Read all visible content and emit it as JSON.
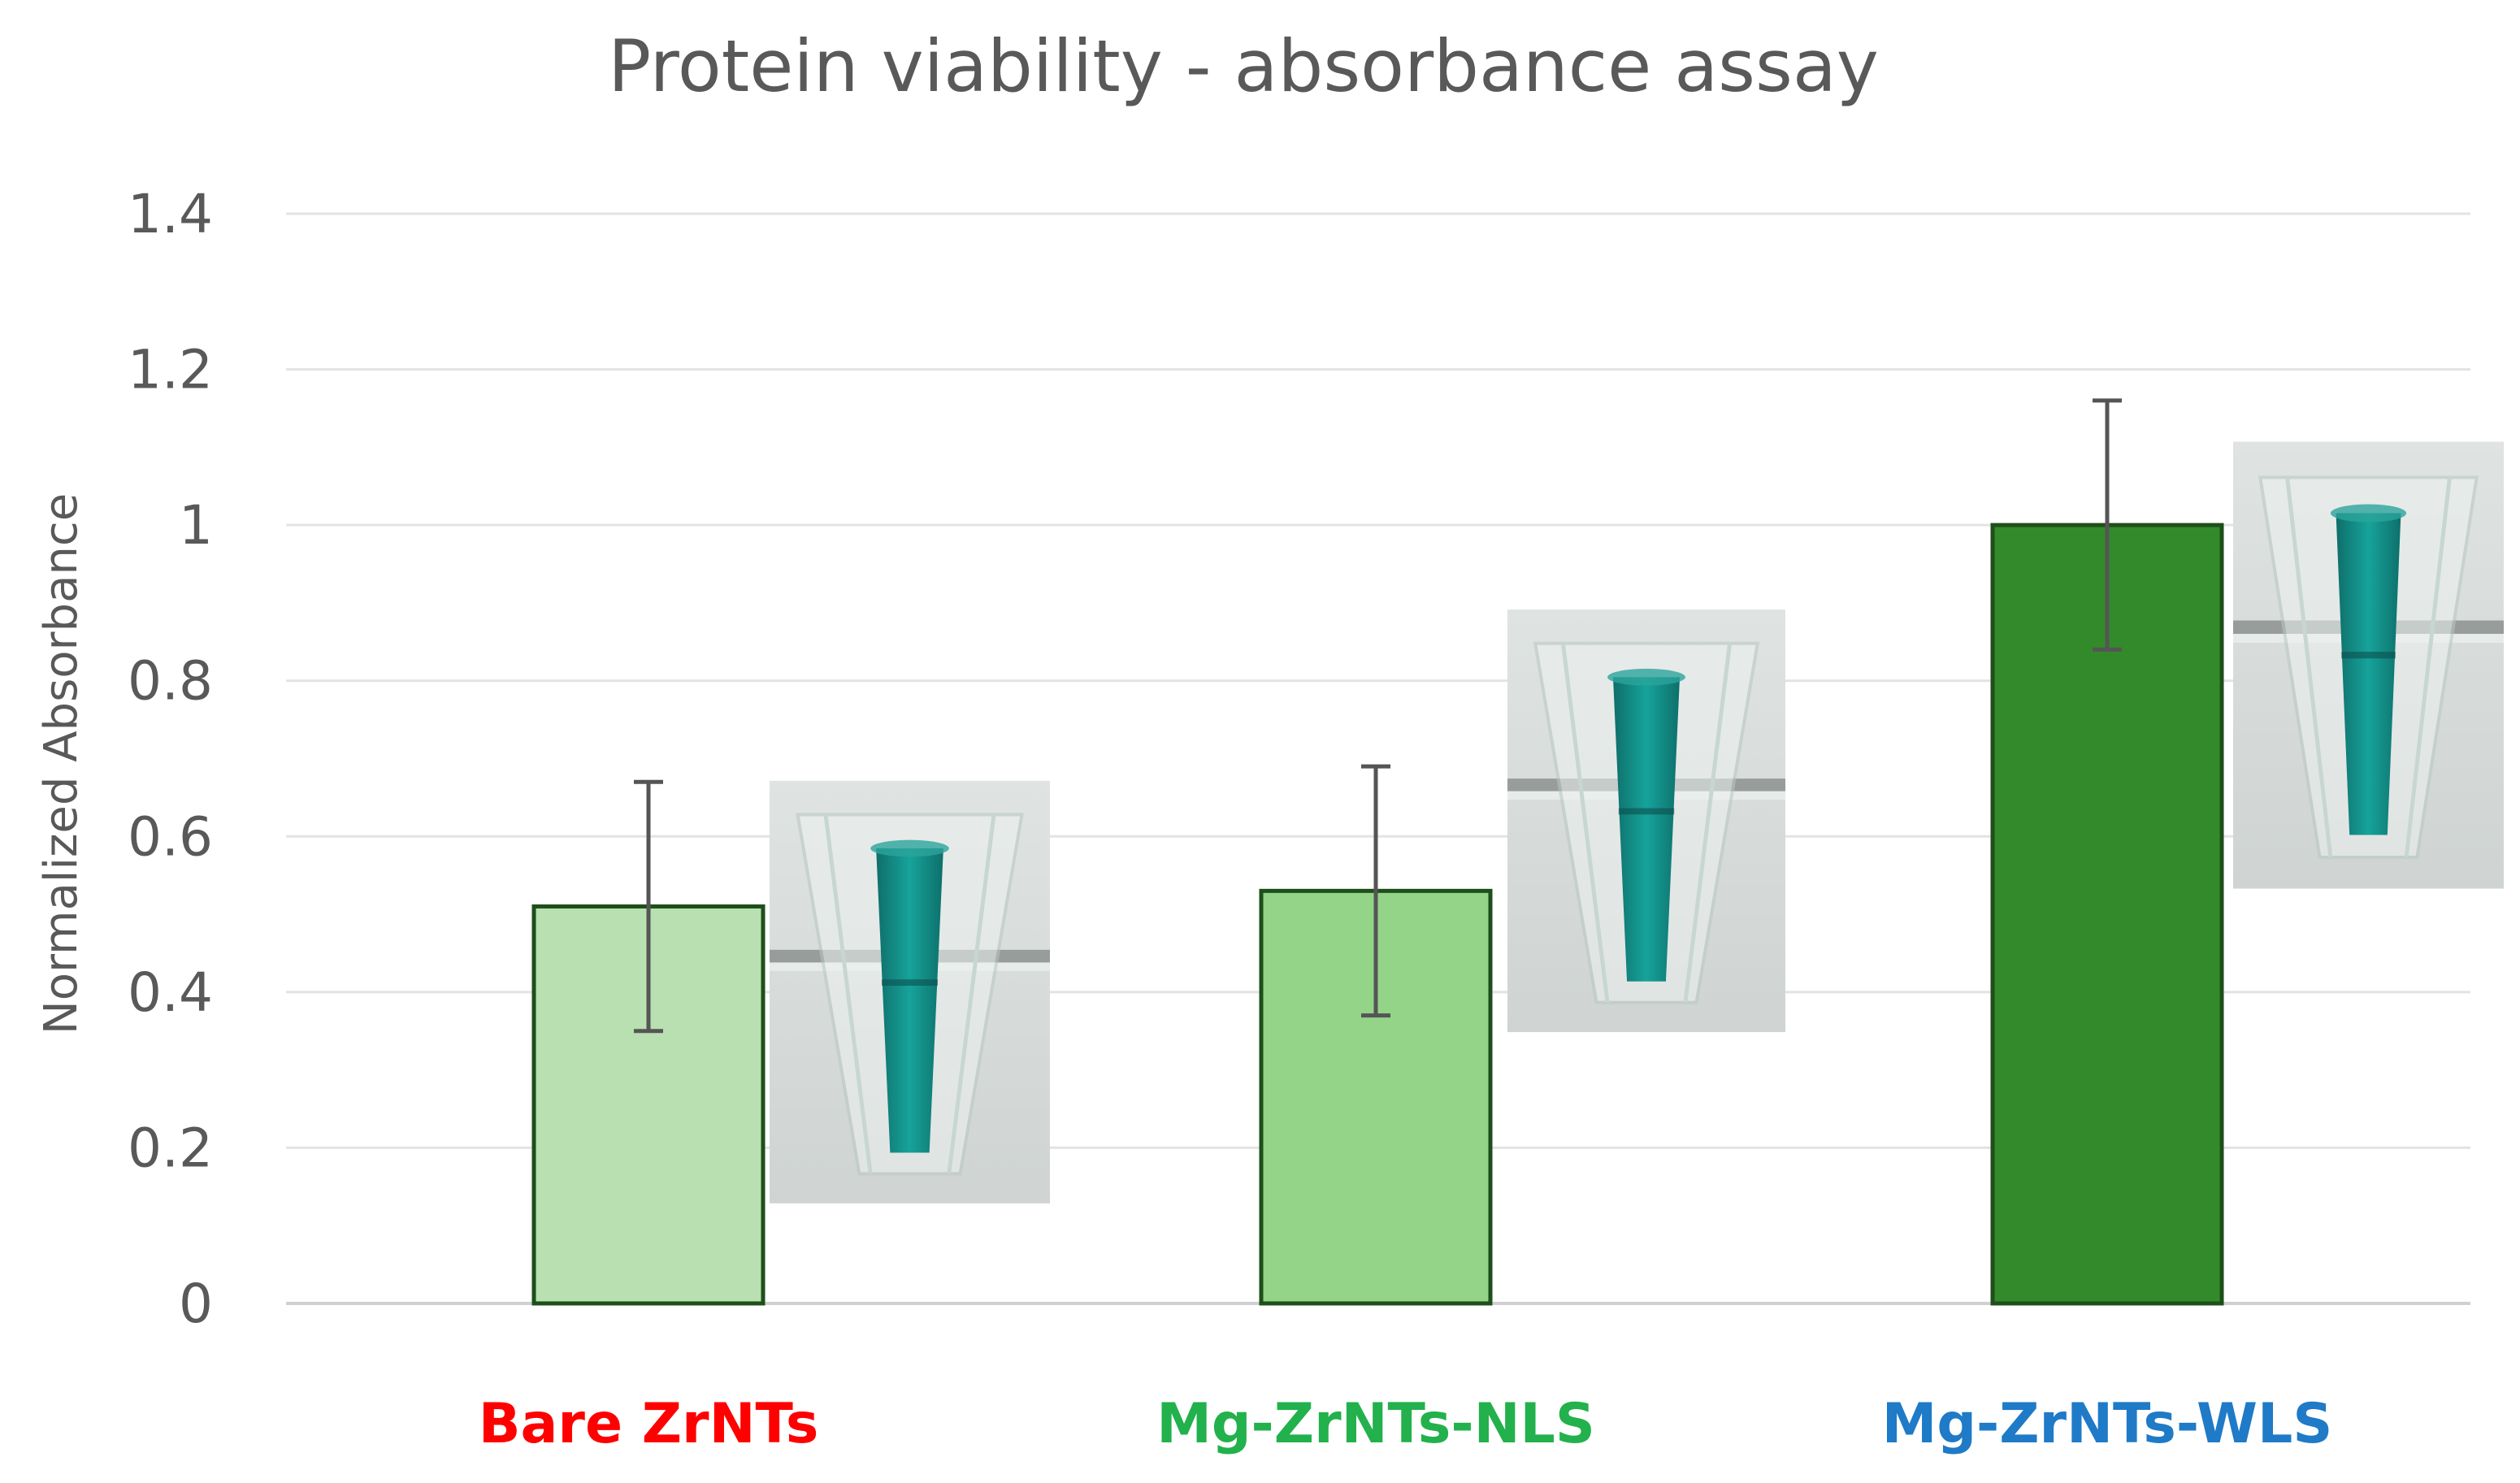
{
  "chart_data": {
    "type": "bar",
    "title": "Protein viability - absorbance assay",
    "xlabel": "",
    "ylabel": "Normalized Absorbance",
    "ylim": [
      0,
      1.4
    ],
    "yticks": [
      0,
      0.2,
      0.4,
      0.6,
      0.8,
      1,
      1.2,
      1.4
    ],
    "ytick_labels": [
      "0",
      "0.2",
      "0.4",
      "0.6",
      "0.8",
      "1",
      "1.2",
      "1.4"
    ],
    "grid": "horizontal",
    "categories": [
      "Bare ZrNTs",
      "Mg-ZrNTs-NLS",
      "Mg-ZrNTs-WLS"
    ],
    "category_label_colors": [
      "#ff0000",
      "#22b14c",
      "#1f7ac7"
    ],
    "values": [
      0.51,
      0.53,
      1.0
    ],
    "error_low": [
      0.35,
      0.37,
      0.84
    ],
    "error_high": [
      0.67,
      0.69,
      1.16
    ],
    "bar_fill_colors": [
      "#b8e0b0",
      "#93d488",
      "#338a2b"
    ],
    "bar_edge_color": "#1e4f1a",
    "inset_images": [
      "cuvette-photo",
      "cuvette-photo",
      "cuvette-photo"
    ],
    "inset_level": [
      0.4,
      0.62,
      0.82
    ]
  }
}
